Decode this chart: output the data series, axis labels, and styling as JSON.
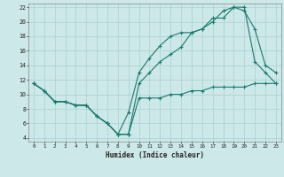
{
  "title": "",
  "xlabel": "Humidex (Indice chaleur)",
  "ylabel": "",
  "background_color": "#cce8e8",
  "grid_color": "#aad0d0",
  "line_color": "#1a7a6e",
  "xlim": [
    -0.5,
    23.5
  ],
  "ylim": [
    3.5,
    22.5
  ],
  "xticks": [
    0,
    1,
    2,
    3,
    4,
    5,
    6,
    7,
    8,
    9,
    10,
    11,
    12,
    13,
    14,
    15,
    16,
    17,
    18,
    19,
    20,
    21,
    22,
    23
  ],
  "yticks": [
    4,
    6,
    8,
    10,
    12,
    14,
    16,
    18,
    20,
    22
  ],
  "line1_x": [
    0,
    1,
    2,
    3,
    4,
    5,
    6,
    7,
    8,
    9,
    10,
    11,
    12,
    13,
    14,
    15,
    16,
    17,
    18,
    19,
    20,
    21,
    22,
    23
  ],
  "line1_y": [
    11.5,
    10.5,
    9.0,
    9.0,
    8.5,
    8.5,
    7.0,
    6.0,
    4.5,
    4.5,
    9.5,
    9.5,
    9.5,
    10.0,
    10.0,
    10.5,
    10.5,
    11.0,
    11.0,
    11.0,
    11.0,
    11.5,
    11.5,
    11.5
  ],
  "line2_x": [
    0,
    1,
    2,
    3,
    4,
    5,
    6,
    7,
    8,
    9,
    10,
    11,
    12,
    13,
    14,
    15,
    16,
    17,
    18,
    19,
    20,
    21,
    22,
    23
  ],
  "line2_y": [
    11.5,
    10.5,
    9.0,
    9.0,
    8.5,
    8.5,
    7.0,
    6.0,
    4.5,
    7.5,
    13.0,
    15.0,
    16.7,
    18.0,
    18.5,
    18.5,
    19.0,
    20.5,
    20.5,
    22.0,
    21.5,
    19.0,
    14.0,
    13.0
  ],
  "line3_x": [
    0,
    1,
    2,
    3,
    4,
    5,
    6,
    7,
    8,
    9,
    10,
    11,
    12,
    13,
    14,
    15,
    16,
    17,
    18,
    19,
    20,
    21,
    22,
    23
  ],
  "line3_y": [
    11.5,
    10.5,
    9.0,
    9.0,
    8.5,
    8.5,
    7.0,
    6.0,
    4.5,
    4.5,
    11.5,
    13.0,
    14.5,
    15.5,
    16.5,
    18.5,
    19.0,
    20.0,
    21.5,
    22.0,
    22.0,
    14.5,
    13.0,
    11.5
  ]
}
